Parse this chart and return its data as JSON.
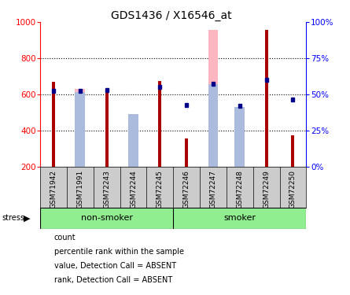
{
  "title": "GDS1436 / X16546_at",
  "samples": [
    "GSM71942",
    "GSM71991",
    "GSM72243",
    "GSM72244",
    "GSM72245",
    "GSM72246",
    "GSM72247",
    "GSM72248",
    "GSM72249",
    "GSM72250"
  ],
  "count_values": [
    670,
    0,
    610,
    0,
    672,
    355,
    0,
    0,
    957,
    375
  ],
  "percentile_values": [
    620,
    620,
    625,
    0,
    640,
    540,
    660,
    535,
    680,
    570
  ],
  "absent_value_values": [
    0,
    630,
    0,
    460,
    0,
    0,
    955,
    455,
    0,
    0
  ],
  "absent_rank_values": [
    0,
    615,
    0,
    490,
    0,
    0,
    655,
    530,
    0,
    0
  ],
  "ylim": [
    200,
    1000
  ],
  "y2lim": [
    0,
    100
  ],
  "yticks": [
    200,
    400,
    600,
    800,
    1000
  ],
  "y2ticks": [
    0,
    25,
    50,
    75,
    100
  ],
  "count_color": "#aa0000",
  "percentile_color": "#00008b",
  "absent_value_color": "#ffb6c1",
  "absent_rank_color": "#aabbdd",
  "grid_color": "black",
  "background_color": "white",
  "nonsmoker_color": "#90ee90",
  "smoker_color": "#90ee90",
  "label_bg_color": "#cccccc",
  "stress_label": "stress"
}
